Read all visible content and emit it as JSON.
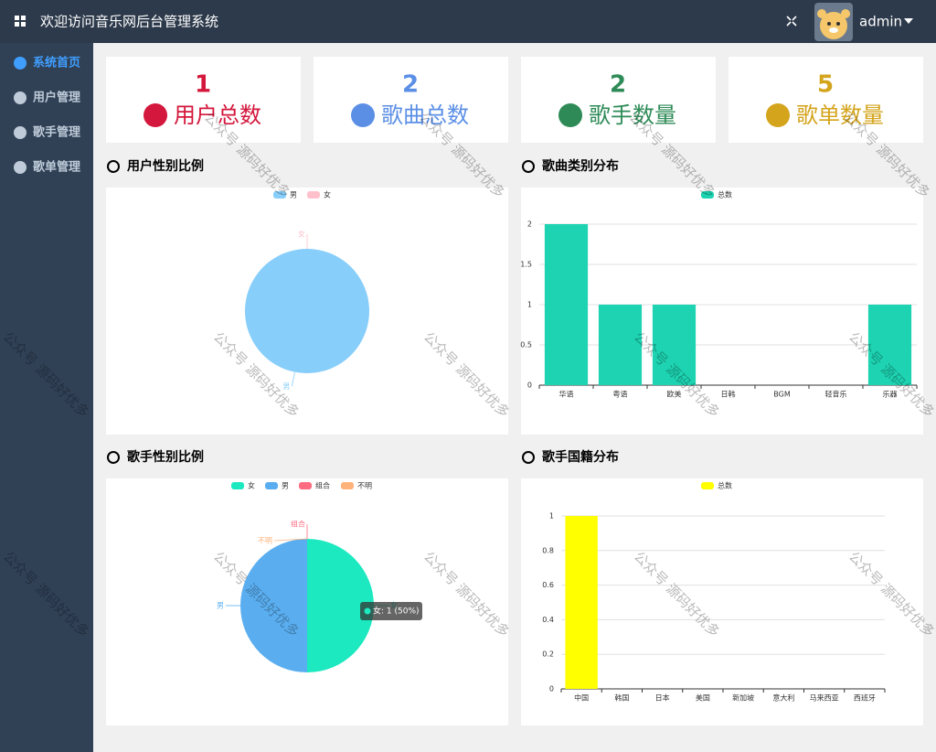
{
  "header": {
    "title": "欢迎访问音乐网后台管理系统",
    "user": "admin"
  },
  "sidebar": {
    "items": [
      "系统首页",
      "用户管理",
      "歌手管理",
      "歌单管理"
    ]
  },
  "cards": [
    {
      "value": 1,
      "label": "用户总数",
      "color": "#d4173c"
    },
    {
      "value": 2,
      "label": "歌曲总数",
      "color": "#5b8fe6"
    },
    {
      "value": 2,
      "label": "歌手数量",
      "color": "#2e8b57"
    },
    {
      "value": 5,
      "label": "歌单数量",
      "color": "#d4a41c"
    }
  ],
  "watermark": "公众号 源码好优多",
  "chart_data": [
    {
      "type": "pie",
      "title": "用户性别比例",
      "categories": [
        "男",
        "女"
      ],
      "values": [
        1,
        0
      ],
      "colors": [
        "#87cefa",
        "#ffc0cb"
      ]
    },
    {
      "type": "bar",
      "title": "歌曲类别分布",
      "categories": [
        "华语",
        "粤语",
        "欧美",
        "日韩",
        "BGM",
        "轻音乐",
        "乐器"
      ],
      "series": [
        {
          "name": "总数",
          "color": "#1dd3b1",
          "values": [
            2,
            1,
            1,
            0,
            0,
            0,
            1
          ]
        }
      ],
      "ylim": [
        0,
        2
      ],
      "yticks": [
        0,
        0.5,
        1,
        1.5,
        2
      ],
      "grid": true
    },
    {
      "type": "pie",
      "title": "歌手性别比例",
      "categories": [
        "女",
        "男",
        "组合",
        "不明"
      ],
      "values": [
        1,
        1,
        0,
        0
      ],
      "colors": [
        "#1de9c0",
        "#5aaef0",
        "#ff6b81",
        "#ffb27a"
      ],
      "tooltip": "女: 1 (50%)"
    },
    {
      "type": "bar",
      "title": "歌手国籍分布",
      "categories": [
        "中国",
        "韩国",
        "日本",
        "美国",
        "新加坡",
        "意大利",
        "马来西亚",
        "西班牙"
      ],
      "series": [
        {
          "name": "总数",
          "color": "#ffff00",
          "values": [
            1,
            0,
            0,
            0,
            0,
            0,
            0,
            0
          ]
        }
      ],
      "ylim": [
        0,
        1
      ],
      "yticks": [
        0,
        0.2,
        0.4,
        0.6,
        0.8,
        1
      ],
      "grid": true
    }
  ]
}
